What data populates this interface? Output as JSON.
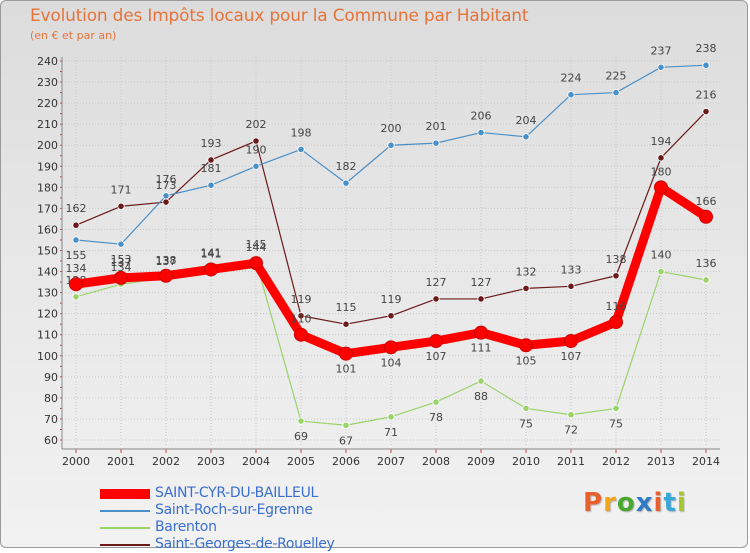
{
  "header": {
    "title": "Evolution des Impôts locaux pour la Commune par Habitant",
    "subtitle": "(en € et par an)"
  },
  "logo": {
    "text": "Proxiti",
    "colors": [
      "#e8612c",
      "#f2a51a",
      "#49a72f",
      "#2e7bc8",
      "#e8612c",
      "#3aa7d8",
      "#a4c630"
    ]
  },
  "chart_data": {
    "type": "line",
    "title": "Evolution des Impôts locaux pour la Commune par Habitant",
    "subtitle": "(en € et par an)",
    "xlabel": "",
    "ylabel": "",
    "x": [
      2000,
      2001,
      2002,
      2003,
      2004,
      2005,
      2006,
      2007,
      2008,
      2009,
      2010,
      2011,
      2012,
      2013,
      2014
    ],
    "ylim": [
      60,
      240
    ],
    "yticks": [
      60,
      70,
      80,
      90,
      100,
      110,
      120,
      130,
      140,
      150,
      160,
      170,
      180,
      190,
      200,
      210,
      220,
      230,
      240
    ],
    "grid": true,
    "legend_position": "bottom-left",
    "series": [
      {
        "name": "Saint-Georges-de-Rouelley",
        "color": "#6b1a1a",
        "style": "thin",
        "values": [
          162,
          171,
          173,
          193,
          202,
          119,
          115,
          119,
          127,
          127,
          132,
          133,
          138,
          194,
          216
        ]
      },
      {
        "name": "Saint-Roch-sur-Egrenne",
        "color": "#4a90c8",
        "style": "thin",
        "values": [
          155,
          153,
          176,
          181,
          190,
          198,
          182,
          200,
          201,
          206,
          204,
          224,
          225,
          237,
          238
        ]
      },
      {
        "name": "Barenton",
        "color": "#9ad36a",
        "style": "thin",
        "values": [
          128,
          134,
          137,
          141,
          145,
          69,
          67,
          71,
          78,
          88,
          75,
          72,
          75,
          140,
          136
        ]
      },
      {
        "name": "SAINT-CYR-DU-BAILLEUL",
        "color": "#ff0000",
        "style": "thick",
        "values": [
          134,
          137,
          138,
          141,
          144,
          110,
          101,
          104,
          107,
          111,
          105,
          107,
          116,
          180,
          166
        ]
      }
    ],
    "legend_order": [
      "SAINT-CYR-DU-BAILLEUL",
      "Saint-Roch-sur-Egrenne",
      "Barenton",
      "Saint-Georges-de-Rouelley"
    ]
  }
}
